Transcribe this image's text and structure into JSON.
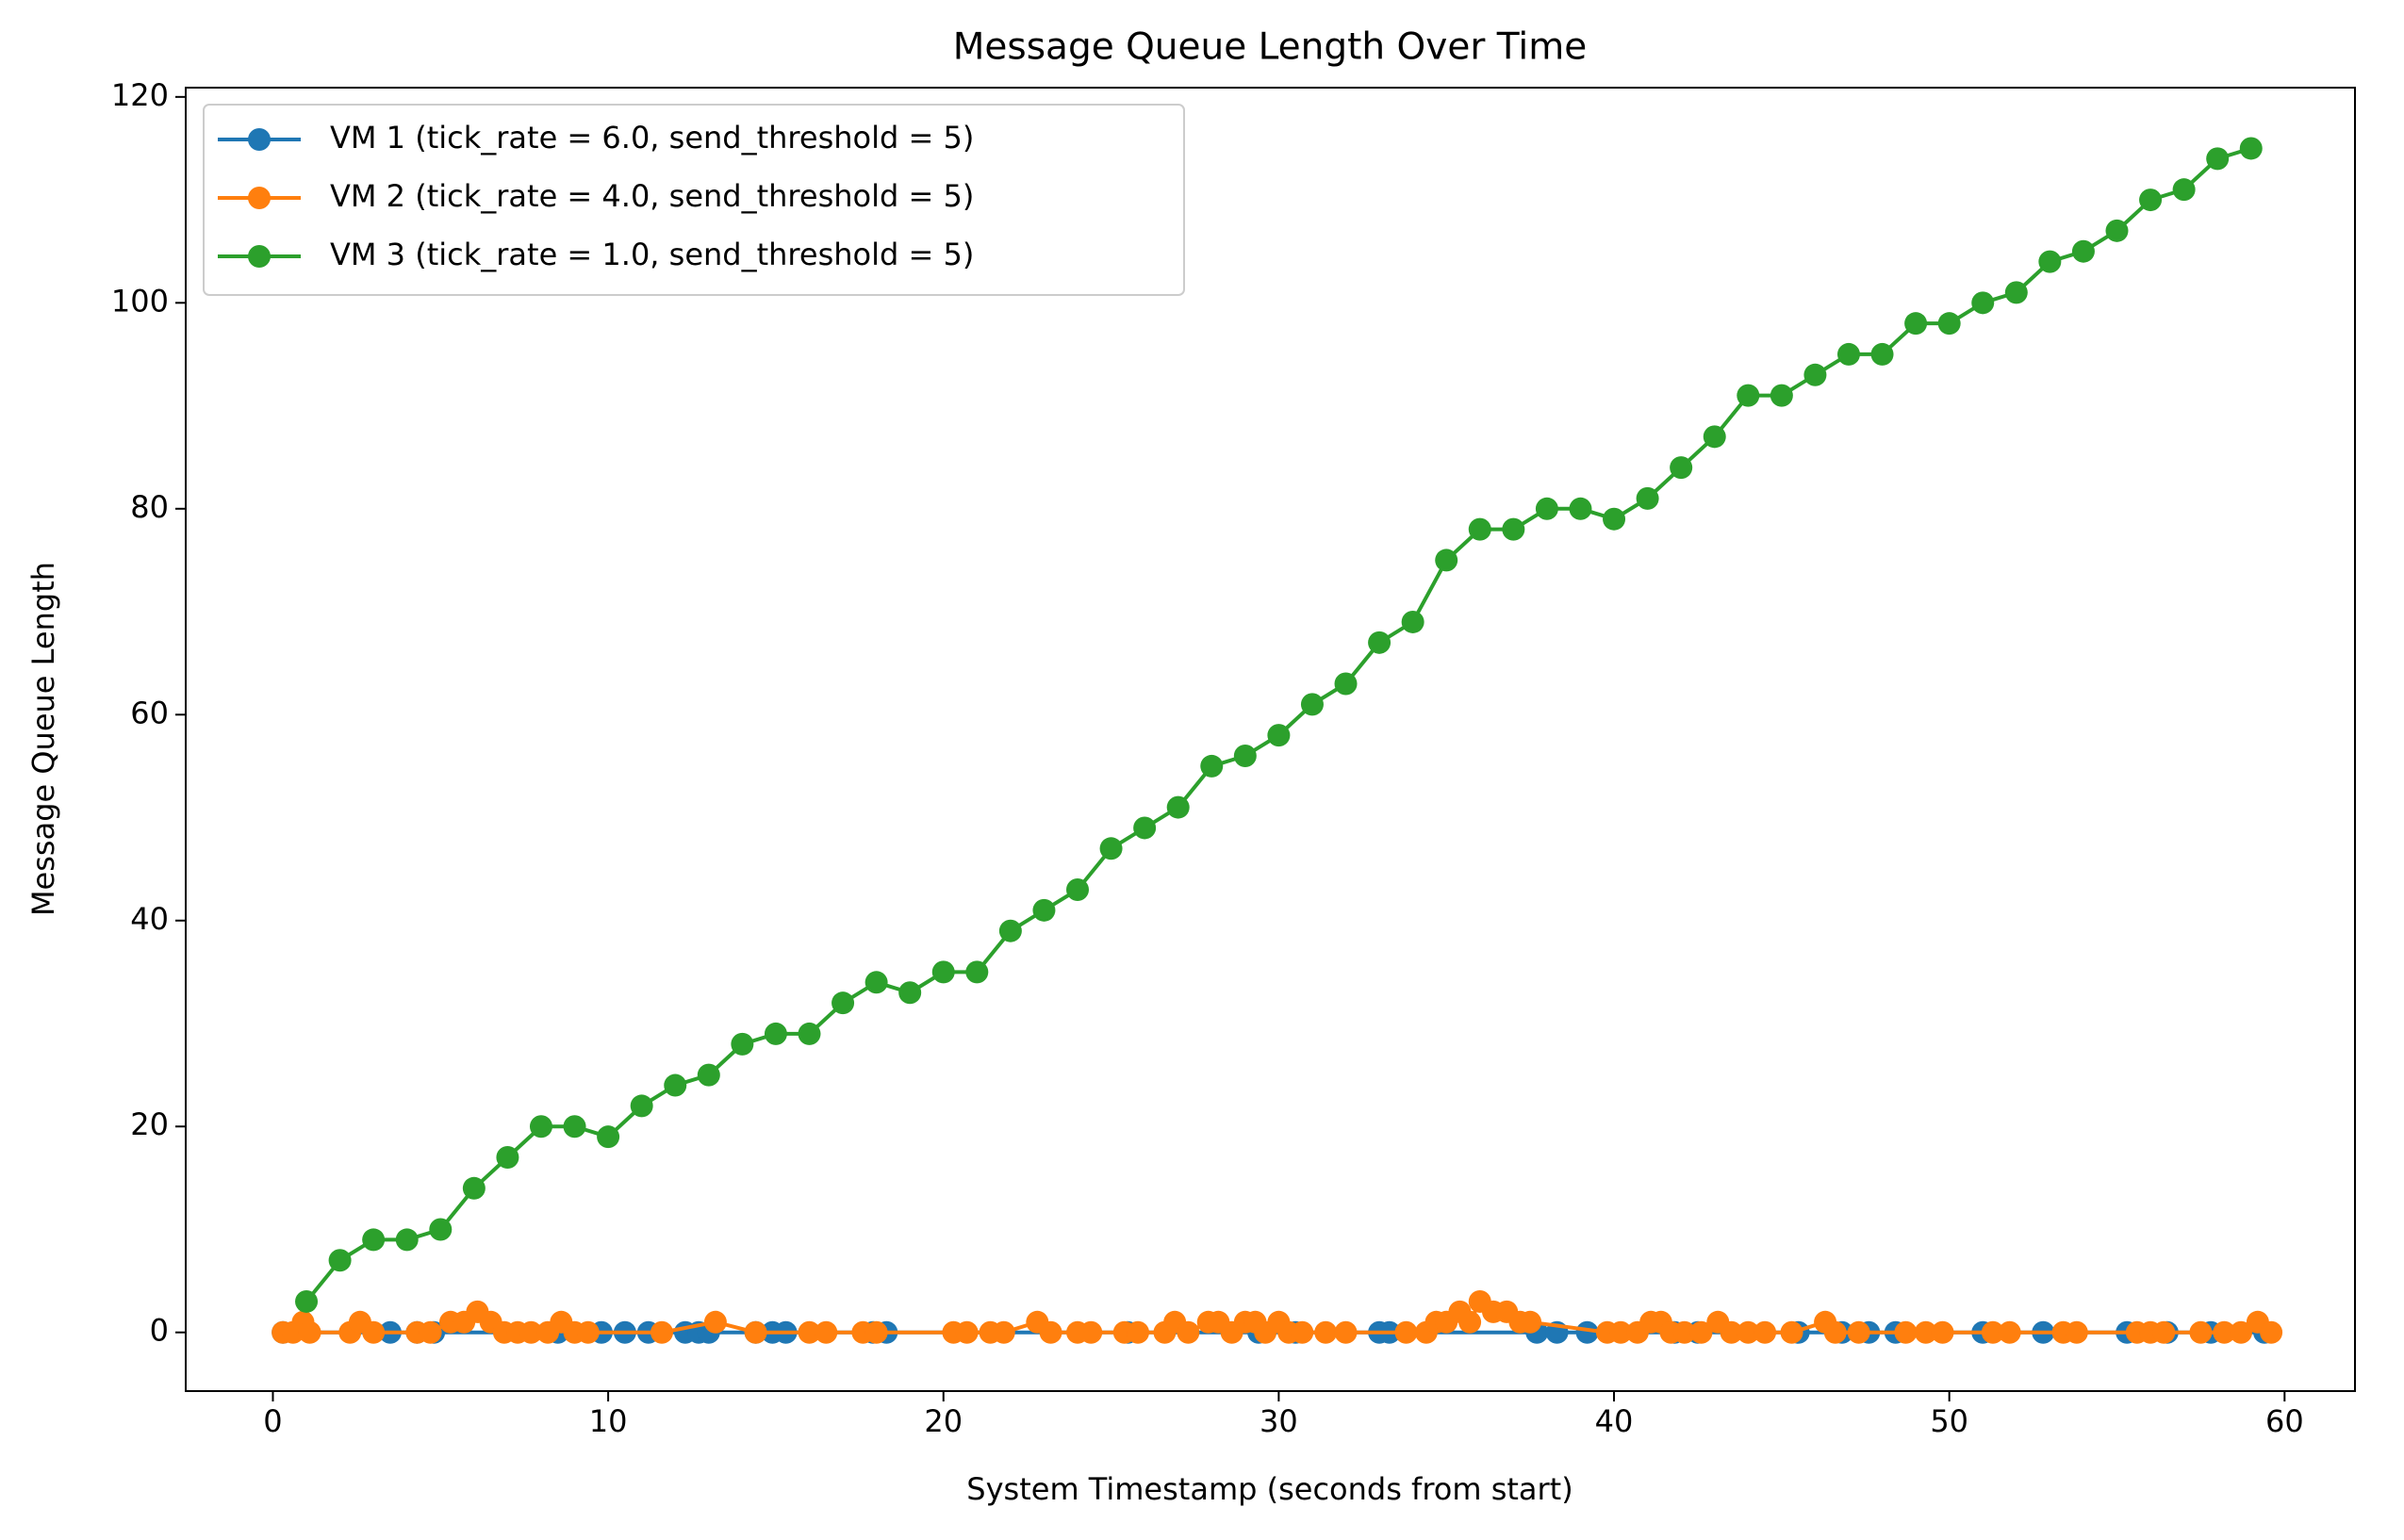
{
  "chart_data": {
    "type": "line",
    "title": "Message Queue Length Over Time",
    "xlabel": "System Timestamp (seconds from start)",
    "ylabel": "Message Queue Length",
    "xlim": [
      -2.6,
      62.1
    ],
    "ylim": [
      -5.7,
      120.9
    ],
    "xticks": [
      0,
      10,
      20,
      30,
      40,
      50,
      60
    ],
    "yticks": [
      0,
      20,
      40,
      60,
      80,
      100,
      120
    ],
    "legend": "upper left",
    "series": [
      {
        "name": "VM 1 (tick_rate = 6.0, send_threshold = 5)",
        "color": "#1f77b4",
        "x": [
          0.3,
          3.5,
          4.3,
          4.8,
          8.5,
          9.8,
          10.5,
          11.2,
          12.3,
          12.7,
          13,
          14.4,
          14.9,
          15.3,
          17.9,
          18.3,
          25.5,
          29.4,
          30.5,
          33,
          33.3,
          37.7,
          38.3,
          39.2,
          41.8,
          42.5,
          45.5,
          46.8,
          47.6,
          48.4,
          51,
          52.8,
          55.3,
          56.5,
          57.8,
          59.4
        ],
        "values": [
          0,
          0,
          0,
          0,
          0,
          0,
          0,
          0,
          0,
          0,
          0,
          0,
          0,
          0,
          0,
          0,
          0,
          0,
          0,
          0,
          0,
          0,
          0,
          0,
          0,
          0,
          0,
          0,
          0,
          0,
          0,
          0,
          0,
          0,
          0,
          0
        ]
      },
      {
        "name": "VM 2 (tick_rate = 4.0, send_threshold = 5)",
        "color": "#ff7f0e",
        "x": [
          0.3,
          0.6,
          0.9,
          1.1,
          2.3,
          2.6,
          3,
          4.3,
          4.7,
          5.3,
          5.7,
          6.1,
          6.5,
          6.9,
          7.3,
          7.7,
          8.2,
          8.6,
          9,
          9.4,
          11.6,
          13.2,
          14.4,
          16,
          16.5,
          17.6,
          18,
          20.3,
          20.7,
          21.4,
          21.8,
          22.8,
          23.2,
          24,
          24.4,
          25.4,
          25.8,
          26.6,
          26.9,
          27.3,
          27.9,
          28.2,
          28.6,
          29,
          29.3,
          29.6,
          30,
          30.3,
          30.7,
          31.4,
          32,
          33.8,
          34.4,
          34.7,
          35,
          35.4,
          35.7,
          36,
          36.4,
          36.8,
          37.2,
          37.5,
          39.8,
          40.2,
          40.7,
          41.1,
          41.4,
          41.7,
          42.1,
          42.6,
          43.1,
          43.5,
          44,
          44.5,
          45.3,
          46.3,
          46.6,
          47.3,
          48.7,
          49.3,
          49.8,
          51.3,
          51.8,
          53.4,
          53.8,
          55.6,
          56,
          56.4,
          57.5,
          58.2,
          58.7,
          59.2,
          59.6
        ],
        "values": [
          0,
          0,
          1,
          0,
          0,
          1,
          0,
          0,
          0,
          1,
          1,
          2,
          1,
          0,
          0,
          0,
          0,
          1,
          0,
          0,
          0,
          1,
          0,
          0,
          0,
          0,
          0,
          0,
          0,
          0,
          0,
          1,
          0,
          0,
          0,
          0,
          0,
          0,
          1,
          0,
          1,
          1,
          0,
          1,
          1,
          0,
          1,
          0,
          0,
          0,
          0,
          0,
          0,
          1,
          1,
          2,
          1,
          3,
          2,
          2,
          1,
          1,
          0,
          0,
          0,
          1,
          1,
          0,
          0,
          0,
          1,
          0,
          0,
          0,
          0,
          1,
          0,
          0,
          0,
          0,
          0,
          0,
          0,
          0,
          0,
          0,
          0,
          0,
          0,
          0,
          0,
          1,
          0
        ]
      },
      {
        "name": "VM 3 (tick_rate = 1.0, send_threshold = 5)",
        "color": "#2ca02c",
        "x": [
          1,
          2,
          3,
          4,
          5,
          6,
          7,
          8,
          9,
          10,
          11,
          12,
          13,
          14,
          15,
          16,
          17,
          18,
          19,
          20,
          21,
          22,
          23,
          24,
          25,
          26,
          27,
          28,
          29,
          30,
          31,
          32,
          33,
          34,
          35,
          36,
          37,
          38,
          39,
          40,
          41,
          42,
          43,
          44,
          45,
          46,
          47,
          48,
          49,
          50,
          51,
          52,
          53,
          54,
          55,
          56,
          57,
          58,
          59
        ],
        "values": [
          3,
          7,
          9,
          9,
          10,
          14,
          17,
          20,
          20,
          19,
          22,
          24,
          25,
          28,
          29,
          29,
          32,
          34,
          33,
          35,
          35,
          39,
          41,
          43,
          47,
          49,
          51,
          55,
          56,
          58,
          61,
          63,
          67,
          69,
          75,
          78,
          78,
          80,
          80,
          79,
          81,
          84,
          87,
          91,
          91,
          93,
          95,
          95,
          98,
          98,
          100,
          101,
          104,
          105,
          107,
          110,
          111,
          114,
          115
        ]
      }
    ]
  }
}
